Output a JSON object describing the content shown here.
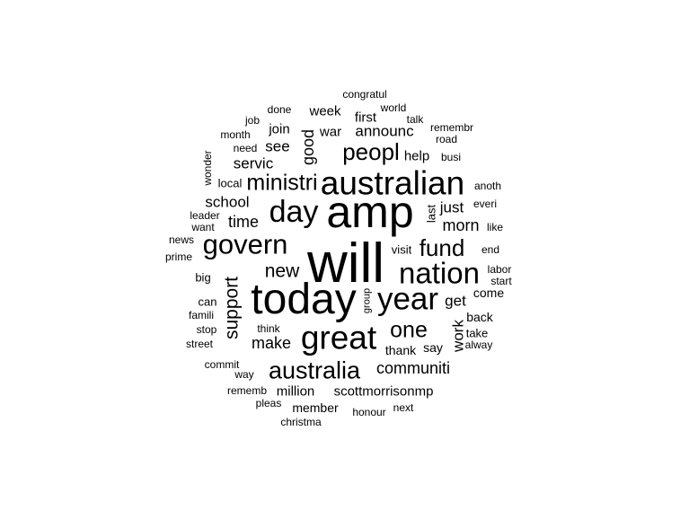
{
  "wordcloud": {
    "words": [
      "will",
      "amp",
      "today",
      "australian",
      "great",
      "year",
      "nation",
      "govern",
      "day",
      "australia",
      "peopl",
      "fund",
      "ministri",
      "one",
      "support",
      "new",
      "communiti",
      "make",
      "morn",
      "time",
      "good",
      "school",
      "announc",
      "servic",
      "just",
      "get",
      "work",
      "see",
      "join",
      "war",
      "week",
      "first",
      "help",
      "million",
      "scottmorrisonmp",
      "member",
      "thank",
      "say",
      "back",
      "come",
      "take",
      "visit",
      "local",
      "last",
      "congratul",
      "world",
      "done",
      "talk",
      "remembr",
      "job",
      "month",
      "road",
      "need",
      "busi",
      "wonder",
      "anoth",
      "everi",
      "leader",
      "want",
      "like",
      "news",
      "prime",
      "end",
      "labor",
      "start",
      "big",
      "can",
      "famili",
      "group",
      "stop",
      "think",
      "street",
      "alway",
      "commit",
      "way",
      "rememb",
      "pleas",
      "honour",
      "next",
      "christma"
    ]
  }
}
